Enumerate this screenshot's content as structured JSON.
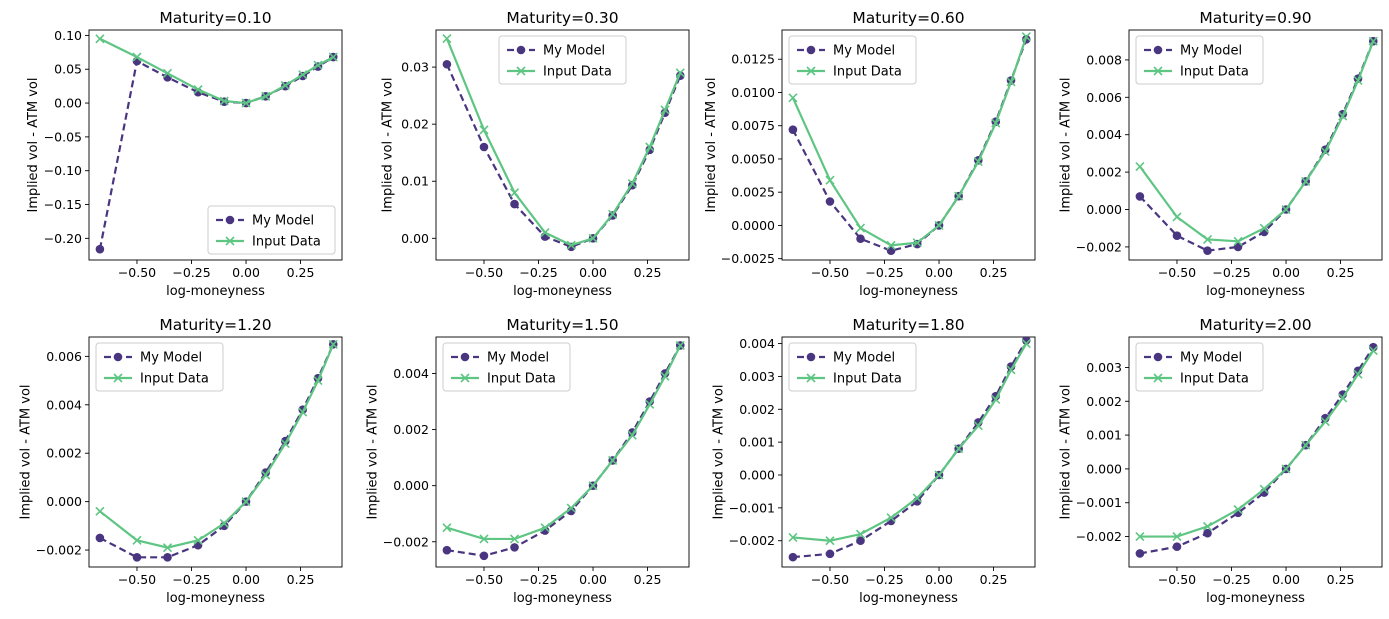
{
  "legend_labels": [
    "My Model",
    "Input Data"
  ],
  "colors": {
    "model": "#4a3580",
    "input": "#5ec583"
  },
  "chart_data": [
    {
      "type": "line",
      "title": "Maturity=0.10",
      "xlabel": "log-moneyness",
      "ylabel": "Implied vol - ATM vol",
      "xlim": [
        -0.72,
        0.44
      ],
      "ylim": [
        -0.232,
        0.108
      ],
      "xticks": [
        -0.5,
        -0.25,
        0.0,
        0.25
      ],
      "xtick_labels": [
        "−0.50",
        "−0.25",
        "0.00",
        "0.25"
      ],
      "yticks": [
        -0.2,
        -0.15,
        -0.1,
        -0.05,
        0.0,
        0.05,
        0.1
      ],
      "ytick_labels": [
        "−0.20",
        "−0.15",
        "−0.10",
        "−0.05",
        "0.00",
        "0.05",
        "0.10"
      ],
      "legend_position": "lower-right",
      "x": [
        -0.67,
        -0.5,
        -0.36,
        -0.22,
        -0.1,
        0.0,
        0.09,
        0.18,
        0.26,
        0.33,
        0.4
      ],
      "series": [
        {
          "name": "My Model",
          "values": [
            -0.216,
            0.062,
            0.038,
            0.016,
            0.002,
            0.0,
            0.01,
            0.025,
            0.04,
            0.054,
            0.068
          ]
        },
        {
          "name": "Input Data",
          "values": [
            0.095,
            0.068,
            0.044,
            0.02,
            0.003,
            0.0,
            0.01,
            0.026,
            0.042,
            0.056,
            0.068
          ]
        }
      ]
    },
    {
      "type": "line",
      "title": "Maturity=0.30",
      "xlabel": "log-moneyness",
      "ylabel": "Implied vol - ATM vol",
      "xlim": [
        -0.72,
        0.44
      ],
      "ylim": [
        -0.0038,
        0.0365
      ],
      "xticks": [
        -0.5,
        -0.25,
        0.0,
        0.25
      ],
      "xtick_labels": [
        "−0.50",
        "−0.25",
        "0.00",
        "0.25"
      ],
      "yticks": [
        0.0,
        0.01,
        0.02,
        0.03
      ],
      "ytick_labels": [
        "0.00",
        "0.01",
        "0.02",
        "0.03"
      ],
      "legend_position": "upper-center",
      "x": [
        -0.67,
        -0.5,
        -0.36,
        -0.22,
        -0.1,
        0.0,
        0.09,
        0.18,
        0.26,
        0.33,
        0.4
      ],
      "series": [
        {
          "name": "My Model",
          "values": [
            0.0305,
            0.016,
            0.006,
            0.0003,
            -0.0015,
            0.0,
            0.004,
            0.0093,
            0.0155,
            0.022,
            0.0285
          ]
        },
        {
          "name": "Input Data",
          "values": [
            0.035,
            0.019,
            0.008,
            0.001,
            -0.0012,
            0.0,
            0.0042,
            0.0096,
            0.016,
            0.0225,
            0.029
          ]
        }
      ]
    },
    {
      "type": "line",
      "title": "Maturity=0.60",
      "xlabel": "log-moneyness",
      "ylabel": "Implied vol - ATM vol",
      "xlim": [
        -0.72,
        0.44
      ],
      "ylim": [
        -0.0026,
        0.0147
      ],
      "xticks": [
        -0.5,
        -0.25,
        0.0,
        0.25
      ],
      "xtick_labels": [
        "−0.50",
        "−0.25",
        "0.00",
        "0.25"
      ],
      "yticks": [
        -0.0025,
        0.0,
        0.0025,
        0.005,
        0.0075,
        0.01,
        0.0125
      ],
      "ytick_labels": [
        "−0.0025",
        "0.0000",
        "0.0025",
        "0.0050",
        "0.0075",
        "0.0100",
        "0.0125"
      ],
      "legend_position": "upper-left",
      "x": [
        -0.67,
        -0.5,
        -0.36,
        -0.22,
        -0.1,
        0.0,
        0.09,
        0.18,
        0.26,
        0.33,
        0.4
      ],
      "series": [
        {
          "name": "My Model",
          "values": [
            0.0072,
            0.0018,
            -0.001,
            -0.0019,
            -0.0014,
            0.0,
            0.0022,
            0.0049,
            0.0078,
            0.0109,
            0.014
          ]
        },
        {
          "name": "Input Data",
          "values": [
            0.0096,
            0.0034,
            -0.0002,
            -0.0015,
            -0.0013,
            0.0,
            0.0022,
            0.0048,
            0.0077,
            0.0108,
            0.0142
          ]
        }
      ]
    },
    {
      "type": "line",
      "title": "Maturity=0.90",
      "xlabel": "log-moneyness",
      "ylabel": "Implied vol - ATM vol",
      "xlim": [
        -0.72,
        0.44
      ],
      "ylim": [
        -0.0027,
        0.0096
      ],
      "xticks": [
        -0.5,
        -0.25,
        0.0,
        0.25
      ],
      "xtick_labels": [
        "−0.50",
        "−0.25",
        "0.00",
        "0.25"
      ],
      "yticks": [
        -0.002,
        0.0,
        0.002,
        0.004,
        0.006,
        0.008
      ],
      "ytick_labels": [
        "−0.002",
        "0.000",
        "0.002",
        "0.004",
        "0.006",
        "0.008"
      ],
      "legend_position": "upper-left",
      "x": [
        -0.67,
        -0.5,
        -0.36,
        -0.22,
        -0.1,
        0.0,
        0.09,
        0.18,
        0.26,
        0.33,
        0.4
      ],
      "series": [
        {
          "name": "My Model",
          "values": [
            0.0007,
            -0.0014,
            -0.0022,
            -0.002,
            -0.0012,
            0.0,
            0.0015,
            0.0032,
            0.0051,
            0.007,
            0.009
          ]
        },
        {
          "name": "Input Data",
          "values": [
            0.0023,
            -0.0004,
            -0.0016,
            -0.0017,
            -0.001,
            0.0,
            0.0015,
            0.0031,
            0.005,
            0.0069,
            0.009
          ]
        }
      ]
    },
    {
      "type": "line",
      "title": "Maturity=1.20",
      "xlabel": "log-moneyness",
      "ylabel": "Implied vol - ATM vol",
      "xlim": [
        -0.72,
        0.44
      ],
      "ylim": [
        -0.0027,
        0.0068
      ],
      "xticks": [
        -0.5,
        -0.25,
        0.0,
        0.25
      ],
      "xtick_labels": [
        "−0.50",
        "−0.25",
        "0.00",
        "0.25"
      ],
      "yticks": [
        -0.002,
        0.0,
        0.002,
        0.004,
        0.006
      ],
      "ytick_labels": [
        "−0.002",
        "0.000",
        "0.002",
        "0.004",
        "0.006"
      ],
      "legend_position": "upper-left",
      "x": [
        -0.67,
        -0.5,
        -0.36,
        -0.22,
        -0.1,
        0.0,
        0.09,
        0.18,
        0.26,
        0.33,
        0.4
      ],
      "series": [
        {
          "name": "My Model",
          "values": [
            -0.0015,
            -0.0023,
            -0.0023,
            -0.0018,
            -0.001,
            0.0,
            0.0012,
            0.0025,
            0.0038,
            0.0051,
            0.0065
          ]
        },
        {
          "name": "Input Data",
          "values": [
            -0.0004,
            -0.0016,
            -0.0019,
            -0.0016,
            -0.0009,
            0.0,
            0.0011,
            0.0024,
            0.0037,
            0.005,
            0.0065
          ]
        }
      ]
    },
    {
      "type": "line",
      "title": "Maturity=1.50",
      "xlabel": "log-moneyness",
      "ylabel": "Implied vol - ATM vol",
      "xlim": [
        -0.72,
        0.44
      ],
      "ylim": [
        -0.0029,
        0.0053
      ],
      "xticks": [
        -0.5,
        -0.25,
        0.0,
        0.25
      ],
      "xtick_labels": [
        "−0.50",
        "−0.25",
        "0.00",
        "0.25"
      ],
      "yticks": [
        -0.002,
        0.0,
        0.002,
        0.004
      ],
      "ytick_labels": [
        "−0.002",
        "0.000",
        "0.002",
        "0.004"
      ],
      "legend_position": "upper-left",
      "x": [
        -0.67,
        -0.5,
        -0.36,
        -0.22,
        -0.1,
        0.0,
        0.09,
        0.18,
        0.26,
        0.33,
        0.4
      ],
      "series": [
        {
          "name": "My Model",
          "values": [
            -0.0023,
            -0.0025,
            -0.0022,
            -0.0016,
            -0.0009,
            0.0,
            0.0009,
            0.0019,
            0.003,
            0.004,
            0.005
          ]
        },
        {
          "name": "Input Data",
          "values": [
            -0.0015,
            -0.0019,
            -0.0019,
            -0.0015,
            -0.0008,
            0.0,
            0.0009,
            0.0018,
            0.0029,
            0.0039,
            0.005
          ]
        }
      ]
    },
    {
      "type": "line",
      "title": "Maturity=1.80",
      "xlabel": "log-moneyness",
      "ylabel": "Implied vol - ATM vol",
      "xlim": [
        -0.72,
        0.44
      ],
      "ylim": [
        -0.0028,
        0.0042
      ],
      "xticks": [
        -0.5,
        -0.25,
        0.0,
        0.25
      ],
      "xtick_labels": [
        "−0.50",
        "−0.25",
        "0.00",
        "0.25"
      ],
      "yticks": [
        -0.002,
        -0.001,
        0.0,
        0.001,
        0.002,
        0.003,
        0.004
      ],
      "ytick_labels": [
        "−0.002",
        "−0.001",
        "0.000",
        "0.001",
        "0.002",
        "0.003",
        "0.004"
      ],
      "legend_position": "upper-left",
      "x": [
        -0.67,
        -0.5,
        -0.36,
        -0.22,
        -0.1,
        0.0,
        0.09,
        0.18,
        0.26,
        0.33,
        0.4
      ],
      "series": [
        {
          "name": "My Model",
          "values": [
            -0.0025,
            -0.0024,
            -0.002,
            -0.0014,
            -0.0008,
            0.0,
            0.0008,
            0.0016,
            0.0024,
            0.0033,
            0.0041
          ]
        },
        {
          "name": "Input Data",
          "values": [
            -0.0019,
            -0.002,
            -0.0018,
            -0.0013,
            -0.0007,
            0.0,
            0.0008,
            0.0015,
            0.0023,
            0.0032,
            0.004
          ]
        }
      ]
    },
    {
      "type": "line",
      "title": "Maturity=2.00",
      "xlabel": "log-moneyness",
      "ylabel": "Implied vol - ATM vol",
      "xlim": [
        -0.72,
        0.44
      ],
      "ylim": [
        -0.0029,
        0.0039
      ],
      "xticks": [
        -0.5,
        -0.25,
        0.0,
        0.25
      ],
      "xtick_labels": [
        "−0.50",
        "−0.25",
        "0.00",
        "0.25"
      ],
      "yticks": [
        -0.002,
        -0.001,
        0.0,
        0.001,
        0.002,
        0.003
      ],
      "ytick_labels": [
        "−0.002",
        "−0.001",
        "0.000",
        "0.001",
        "0.002",
        "0.003"
      ],
      "legend_position": "upper-left",
      "x": [
        -0.67,
        -0.5,
        -0.36,
        -0.22,
        -0.1,
        0.0,
        0.09,
        0.18,
        0.26,
        0.33,
        0.4
      ],
      "series": [
        {
          "name": "My Model",
          "values": [
            -0.0025,
            -0.0023,
            -0.0019,
            -0.0013,
            -0.0007,
            0.0,
            0.0007,
            0.0015,
            0.0022,
            0.0029,
            0.0036
          ]
        },
        {
          "name": "Input Data",
          "values": [
            -0.002,
            -0.002,
            -0.0017,
            -0.0012,
            -0.0006,
            0.0,
            0.0007,
            0.0014,
            0.0021,
            0.0028,
            0.0035
          ]
        }
      ]
    }
  ]
}
